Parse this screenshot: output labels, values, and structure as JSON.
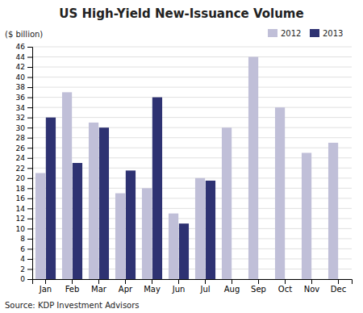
{
  "chart_data": {
    "type": "bar",
    "title": "US High-Yield New-Issuance Volume",
    "ylabel": "($ billion)",
    "source": "Source: KDP Investment Advisors",
    "categories": [
      "Jan",
      "Feb",
      "Mar",
      "Apr",
      "May",
      "Jun",
      "Jul",
      "Aug",
      "Sep",
      "Oct",
      "Nov",
      "Dec"
    ],
    "series": [
      {
        "name": "2012",
        "color": "#c0bfd8",
        "values": [
          21,
          37,
          31,
          17,
          18,
          13,
          20,
          30,
          44,
          34,
          25,
          27
        ]
      },
      {
        "name": "2013",
        "color": "#2e3272",
        "values": [
          32,
          23,
          30,
          21.5,
          36,
          11,
          19.5,
          null,
          null,
          null,
          null,
          null
        ]
      }
    ],
    "ylim": [
      0,
      46
    ],
    "yticks": [
      0,
      2,
      4,
      6,
      8,
      10,
      12,
      14,
      16,
      18,
      20,
      22,
      24,
      26,
      28,
      30,
      32,
      34,
      36,
      38,
      40,
      42,
      44,
      46
    ],
    "grid": true,
    "legend": "upper right"
  }
}
